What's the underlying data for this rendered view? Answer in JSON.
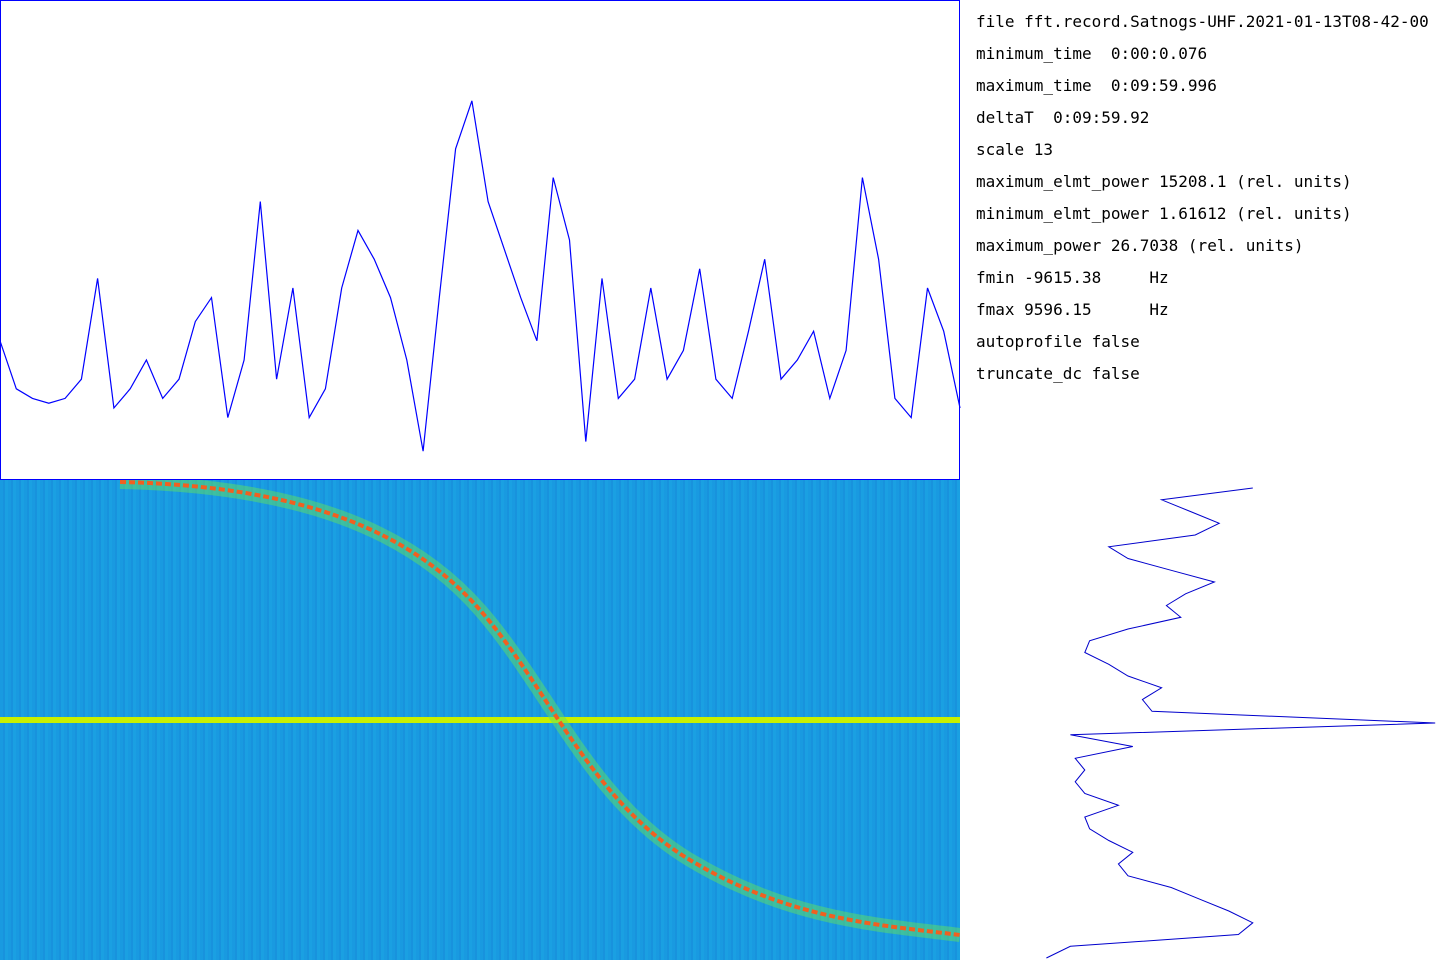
{
  "info": {
    "lines": [
      "file fft.record.Satnogs-UHF.2021-01-13T08-42-00",
      "minimum_time  0:00:0.076",
      "maximum_time  0:09:59.996",
      "deltaT  0:09:59.92",
      "scale 13",
      "maximum_elmt_power 15208.1 (rel. units)",
      "minimum_elmt_power 1.61612 (rel. units)",
      "maximum_power 26.7038 (rel. units)",
      "fmin -9615.38     Hz",
      "fmax 9596.15      Hz",
      "autoprofile false",
      "truncate_dc false"
    ]
  },
  "spectrum": {
    "color": "#0000ff",
    "ylim": [
      0,
      100
    ],
    "values": [
      29,
      19,
      17,
      16,
      17,
      21,
      42,
      15,
      19,
      25,
      17,
      21,
      33,
      38,
      13,
      25,
      58,
      21,
      40,
      13,
      19,
      40,
      52,
      46,
      38,
      25,
      6,
      38,
      69,
      79,
      58,
      48,
      38,
      29,
      63,
      50,
      8,
      42,
      17,
      21,
      40,
      21,
      27,
      44,
      21,
      17,
      31,
      46,
      21,
      25,
      31,
      17,
      27,
      63,
      46,
      17,
      13,
      40,
      31,
      15
    ]
  },
  "time_profile": {
    "color": "#0000cc",
    "xlim": [
      0,
      100
    ],
    "values": [
      61,
      42,
      48,
      54,
      49,
      31,
      35,
      44,
      53,
      47,
      43,
      46,
      35,
      27,
      26,
      31,
      35,
      42,
      38,
      40,
      99,
      23,
      36,
      24,
      26,
      24,
      26,
      33,
      26,
      27,
      31,
      36,
      33,
      35,
      44,
      50,
      56,
      61,
      58,
      23,
      18
    ]
  }
}
